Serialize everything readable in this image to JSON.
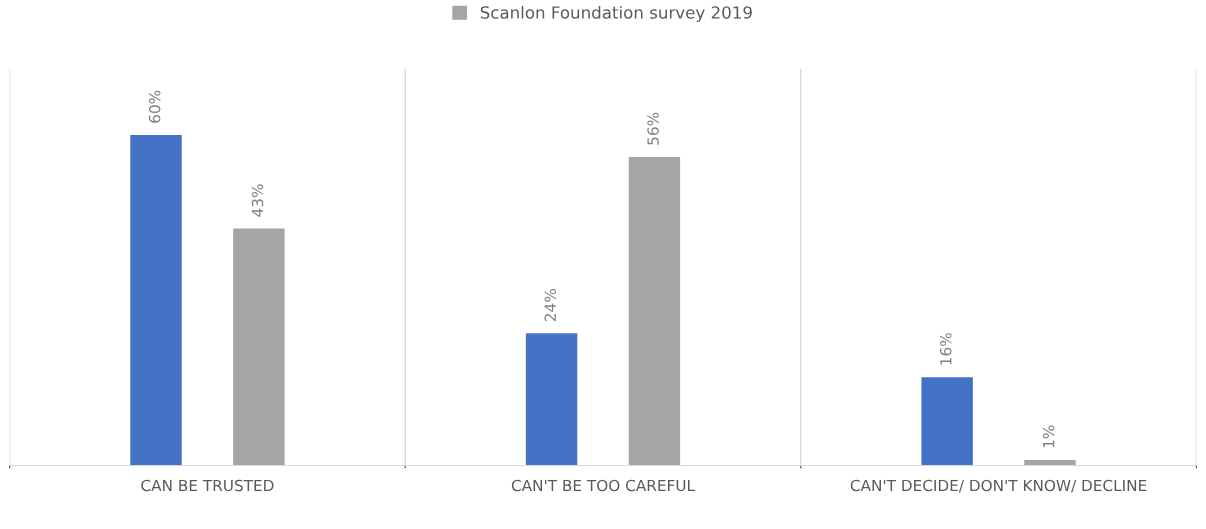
{
  "chart_data": {
    "type": "bar",
    "categories": [
      "CAN BE TRUSTED",
      "CAN'T BE TOO CAREFUL",
      "CAN'T DECIDE/ DON'T KNOW/ DECLINE"
    ],
    "series": [
      {
        "color": "#4472c4",
        "values": [
          60,
          24,
          16
        ],
        "value_labels": [
          "60%",
          "24%",
          "16%"
        ]
      },
      {
        "name": "Scanlon Foundation survey 2019",
        "color": "#a5a5a5",
        "values": [
          43,
          56,
          1
        ],
        "value_labels": [
          "43%",
          "56%",
          "1%"
        ]
      }
    ],
    "legend": "top",
    "grid": "x"
  }
}
